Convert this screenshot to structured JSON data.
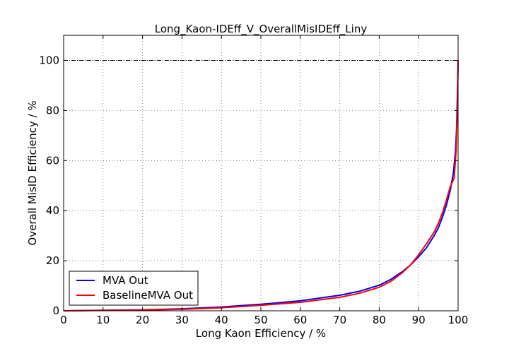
{
  "chart_data": {
    "type": "line",
    "title": "Long_Kaon-IDEff_V_OverallMisIDEff_Liny",
    "xlabel": "Long Kaon Efficiency / %",
    "ylabel": "Overall MisID Efficiency / %",
    "xlim": [
      0,
      100
    ],
    "ylim": [
      0,
      110
    ],
    "xticks": [
      0,
      10,
      20,
      30,
      40,
      50,
      60,
      70,
      80,
      90,
      100
    ],
    "yticks": [
      0,
      20,
      40,
      60,
      80,
      100
    ],
    "xtick_labels": [
      "0",
      "10",
      "20",
      "30",
      "40",
      "50",
      "60",
      "70",
      "80",
      "90",
      "100"
    ],
    "ytick_labels": [
      "0",
      "20",
      "40",
      "60",
      "80",
      "100"
    ],
    "grid": true,
    "reference_line": {
      "y": 100,
      "style": "dash-dot"
    },
    "legend_position": "lower-left",
    "series": [
      {
        "name": "MVA Out",
        "color": "#0000ff",
        "x": [
          0,
          10,
          20,
          30,
          40,
          50,
          60,
          70,
          75,
          80,
          83,
          86,
          88,
          90,
          92,
          94,
          95,
          96,
          97,
          98,
          98.8,
          99.3,
          99.6,
          99.8,
          100
        ],
        "y": [
          0,
          0.2,
          0.4,
          0.8,
          1.5,
          2.6,
          4.0,
          6.2,
          7.8,
          10.2,
          12.6,
          15.8,
          18.4,
          21.6,
          25.2,
          30.2,
          33.2,
          37.2,
          42.0,
          48.0,
          55.0,
          63.0,
          72.0,
          85.0,
          100
        ]
      },
      {
        "name": "BaselineMVA Out",
        "color": "#ff0000",
        "x": [
          0,
          10,
          20,
          30,
          40,
          50,
          60,
          70,
          75,
          80,
          83,
          86,
          88,
          90,
          92,
          94,
          95,
          96,
          97,
          98,
          99,
          99.5,
          99.8,
          100
        ],
        "y": [
          0,
          0.15,
          0.3,
          0.6,
          1.2,
          2.2,
          3.4,
          5.4,
          7.0,
          9.4,
          11.8,
          15.4,
          18.4,
          22.4,
          26.8,
          31.6,
          35.0,
          39.0,
          44.0,
          49.5,
          53.0,
          64.0,
          80.0,
          100
        ]
      }
    ]
  }
}
